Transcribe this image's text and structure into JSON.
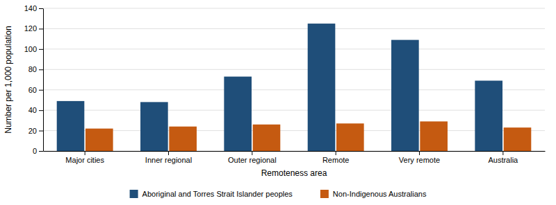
{
  "chart_data": {
    "type": "bar",
    "xlabel": "Remoteness area",
    "ylabel": "Number per 1,000 population",
    "categories": [
      "Major cities",
      "Inner regional",
      "Outer regional",
      "Remote",
      "Very remote",
      "Australia"
    ],
    "series": [
      {
        "name": "Aboriginal and Torres Strait Islander peoples",
        "color": "#1F4E79",
        "values": [
          49,
          48,
          73,
          125,
          109,
          69
        ]
      },
      {
        "name": "Non-Indigenous Australians",
        "color": "#C55A11",
        "values": [
          22,
          24,
          26,
          27,
          29,
          23
        ]
      }
    ],
    "ylim": [
      0,
      140
    ],
    "yticks": [
      0,
      20,
      40,
      60,
      80,
      100,
      120,
      140
    ],
    "grid": true,
    "legend": "bottom"
  }
}
